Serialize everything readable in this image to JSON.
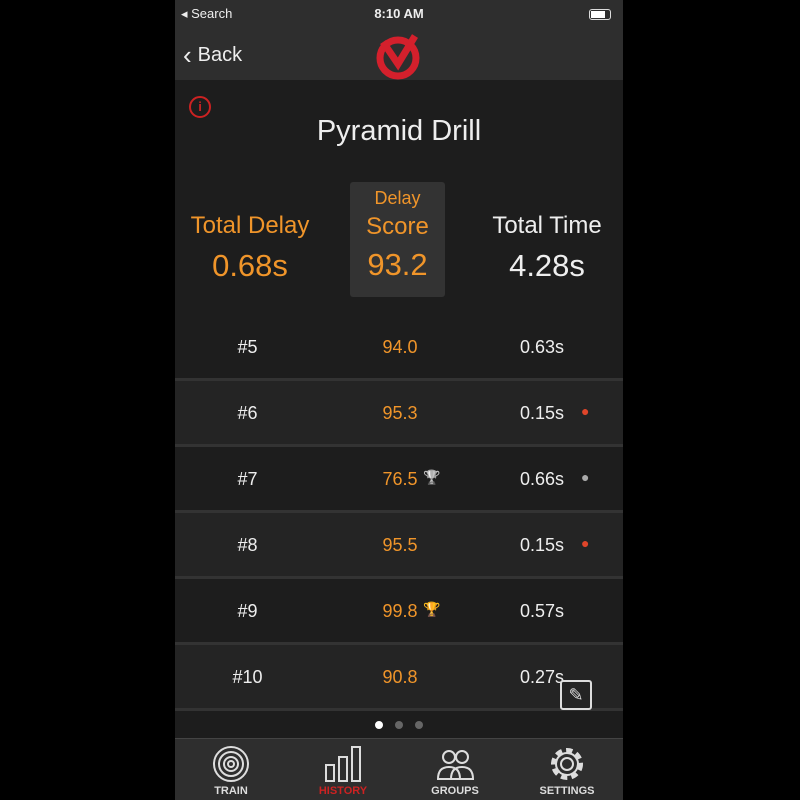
{
  "status": {
    "left": "◂ Search",
    "time": "8:10 AM"
  },
  "nav": {
    "back": "Back"
  },
  "title": "Pyramid Drill",
  "stats": {
    "total_delay_label": "Total Delay",
    "total_delay": "0.68s",
    "score_label_1": "Delay",
    "score_label_2": "Score",
    "score": "93.2",
    "total_time_label": "Total Time",
    "total_time": "4.28s"
  },
  "rows": [
    {
      "num": "#5",
      "score": "94.0",
      "time": "0.63s",
      "score_icon": "",
      "time_icon": ""
    },
    {
      "num": "#6",
      "score": "95.3",
      "time": "0.15s",
      "score_icon": "",
      "time_icon": "fast-red"
    },
    {
      "num": "#7",
      "score": "76.5",
      "time": "0.66s",
      "score_icon": "trophy-gray",
      "time_icon": "slow-gray"
    },
    {
      "num": "#8",
      "score": "95.5",
      "time": "0.15s",
      "score_icon": "",
      "time_icon": "fast-red"
    },
    {
      "num": "#9",
      "score": "99.8",
      "time": "0.57s",
      "score_icon": "trophy-red",
      "time_icon": ""
    },
    {
      "num": "#10",
      "score": "90.8",
      "time": "0.27s",
      "score_icon": "",
      "time_icon": ""
    }
  ],
  "pager": {
    "pages": 3,
    "current": 1
  },
  "tabs": [
    {
      "label": "TRAIN"
    },
    {
      "label": "HISTORY",
      "active": true
    },
    {
      "label": "GROUPS"
    },
    {
      "label": "SETTINGS"
    }
  ],
  "colors": {
    "accent": "#f0952a",
    "brand": "#d4202c"
  }
}
